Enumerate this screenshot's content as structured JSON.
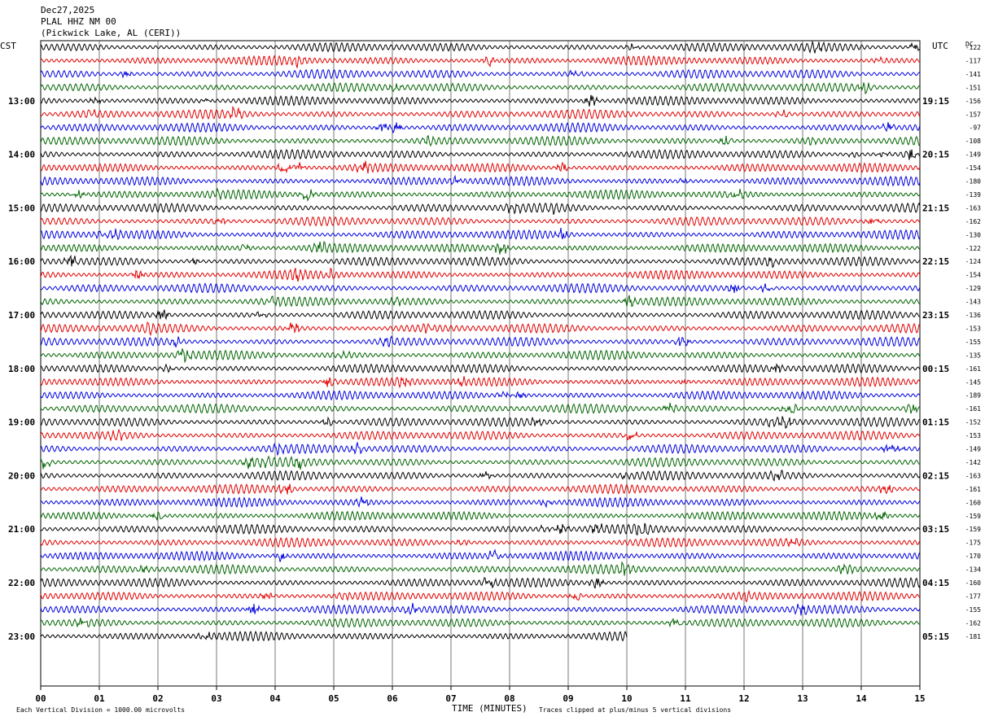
{
  "header": {
    "date": "Dec27,2025",
    "station": "PLAL HHZ NM 00",
    "location": "(Pickwick Lake, AL (CERI))"
  },
  "axes": {
    "left_label": "CST",
    "right_label": "UTC",
    "dc_label": "DC",
    "xlabel": "TIME (MINUTES)",
    "footer_left": "Each Vertical Division = 1000.00 microvolts",
    "footer_right": "Traces clipped at plus/minus 5 vertical divisions"
  },
  "chart_data": {
    "type": "line",
    "subtype": "helicorder",
    "x_ticks": [
      "00",
      "01",
      "02",
      "03",
      "04",
      "05",
      "06",
      "07",
      "08",
      "09",
      "10",
      "11",
      "12",
      "13",
      "14",
      "15"
    ],
    "xlim": [
      0,
      15
    ],
    "grid": "vertical lines at each minute",
    "trace_colors": [
      "#000000",
      "#e00000",
      "#0000e0",
      "#006400"
    ],
    "left_hours": [
      "13:00",
      "14:00",
      "15:00",
      "16:00",
      "17:00",
      "18:00",
      "19:00",
      "20:00",
      "21:00",
      "22:00",
      "23:00"
    ],
    "right_hours": [
      "19:15",
      "20:15",
      "21:15",
      "22:15",
      "23:15",
      "00:15",
      "01:15",
      "02:15",
      "03:15",
      "04:15",
      "05:15"
    ],
    "dc_offsets": [
      -122,
      -117,
      -141,
      -151,
      -156,
      -157,
      -97,
      -108,
      -149,
      -154,
      -180,
      -139,
      -163,
      -162,
      -130,
      -122,
      -124,
      -154,
      -129,
      -143,
      -136,
      -153,
      -155,
      -135,
      -161,
      -145,
      -189,
      -161,
      -152,
      -153,
      -149,
      -142,
      -163,
      -161,
      -160,
      -159,
      -159,
      -175,
      -170,
      -134,
      -160,
      -177,
      -155,
      -162,
      -181
    ],
    "last_trace_end_minute": 10
  }
}
